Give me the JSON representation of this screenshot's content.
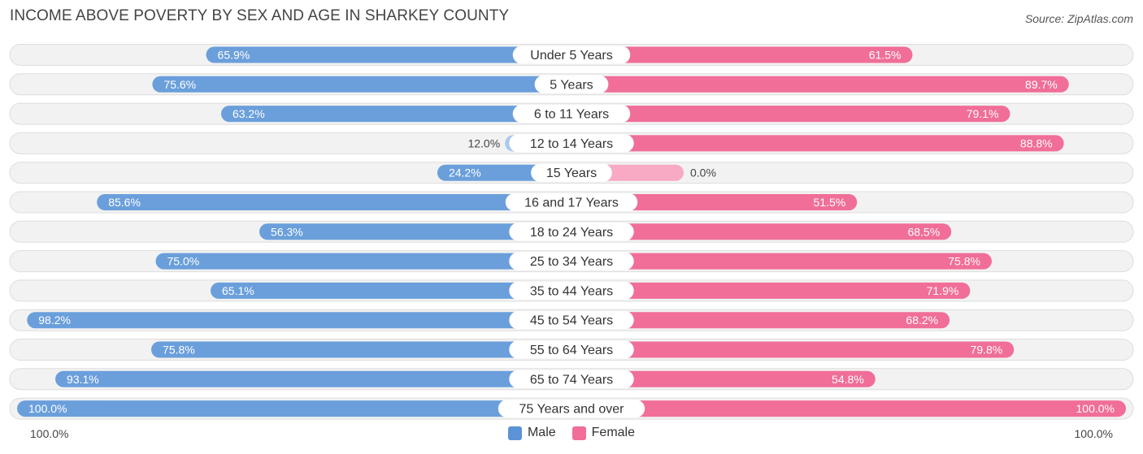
{
  "title": "INCOME ABOVE POVERTY BY SEX AND AGE IN SHARKEY COUNTY",
  "source": "Source: ZipAtlas.com",
  "colors": {
    "male_dark": "#6a9fdb",
    "male_light": "#a9c8ee",
    "female_dark": "#f06e98",
    "female_light": "#f8a9c3",
    "row_bg": "#f2f2f2"
  },
  "legend": {
    "male_label": "Male",
    "female_label": "Female",
    "male_color": "#5b93d6",
    "female_color": "#f06e98"
  },
  "axis": {
    "left_label": "100.0%",
    "right_label": "100.0%"
  },
  "chart_data": {
    "type": "bar",
    "orientation": "horizontal-diverging",
    "title": "INCOME ABOVE POVERTY BY SEX AND AGE IN SHARKEY COUNTY",
    "categories": [
      "Under 5 Years",
      "5 Years",
      "6 to 11 Years",
      "12 to 14 Years",
      "15 Years",
      "16 and 17 Years",
      "18 to 24 Years",
      "25 to 34 Years",
      "35 to 44 Years",
      "45 to 54 Years",
      "55 to 64 Years",
      "65 to 74 Years",
      "75 Years and over"
    ],
    "series": [
      {
        "name": "Male",
        "values": [
          65.9,
          75.6,
          63.2,
          12.0,
          24.2,
          85.6,
          56.3,
          75.0,
          65.1,
          98.2,
          75.8,
          93.1,
          100.0
        ],
        "labels": [
          "65.9%",
          "75.6%",
          "63.2%",
          "12.0%",
          "24.2%",
          "85.6%",
          "56.3%",
          "75.0%",
          "65.1%",
          "98.2%",
          "75.8%",
          "93.1%",
          "100.0%"
        ]
      },
      {
        "name": "Female",
        "values": [
          61.5,
          89.7,
          79.1,
          88.8,
          0.0,
          51.5,
          68.5,
          75.8,
          71.9,
          68.2,
          79.8,
          54.8,
          100.0
        ],
        "labels": [
          "61.5%",
          "89.7%",
          "79.1%",
          "88.8%",
          "0.0%",
          "51.5%",
          "68.5%",
          "75.8%",
          "71.9%",
          "68.2%",
          "79.8%",
          "54.8%",
          "100.0%"
        ]
      }
    ],
    "xlim": [
      0,
      100
    ],
    "unit": "%"
  }
}
